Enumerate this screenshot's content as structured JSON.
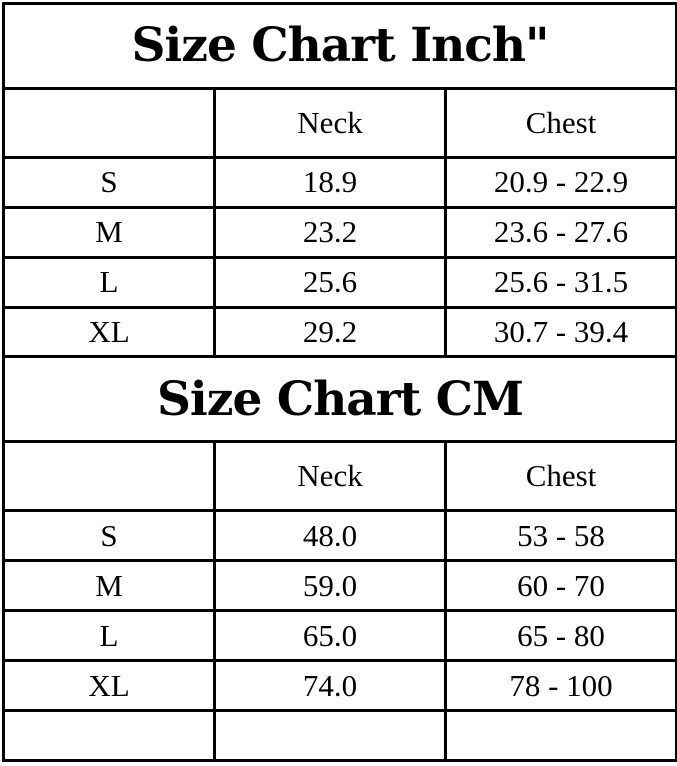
{
  "colors": {
    "border": "#000000",
    "text": "#000000",
    "background": "#ffffff"
  },
  "chart_data": [
    {
      "type": "table",
      "title": "Size Chart Inch\"",
      "unit": "inch",
      "columns": [
        "",
        "Neck",
        "Chest"
      ],
      "rows": [
        [
          "S",
          "18.9",
          "20.9 - 22.9"
        ],
        [
          "M",
          "23.2",
          "23.6 - 27.6"
        ],
        [
          "L",
          "25.6",
          "25.6 - 31.5"
        ],
        [
          "XL",
          "29.2",
          "30.7 - 39.4"
        ]
      ]
    },
    {
      "type": "table",
      "title": "Size Chart CM",
      "unit": "cm",
      "columns": [
        "",
        "Neck",
        "Chest"
      ],
      "rows": [
        [
          "S",
          "48.0",
          "53 - 58"
        ],
        [
          "M",
          "59.0",
          "60 - 70"
        ],
        [
          "L",
          "65.0",
          "65 - 80"
        ],
        [
          "XL",
          "74.0",
          "78 - 100"
        ]
      ],
      "trailing_empty_row": true
    }
  ]
}
